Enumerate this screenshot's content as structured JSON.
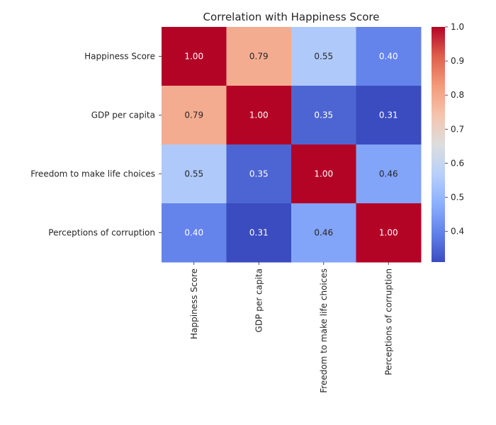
{
  "chart_data": {
    "type": "heatmap",
    "title": "Correlation with Happiness Score",
    "xlabel": "",
    "ylabel": "",
    "rows": [
      "Happiness Score",
      "GDP per capita",
      "Freedom to make life choices",
      "Perceptions of corruption"
    ],
    "columns": [
      "Happiness Score",
      "GDP per capita",
      "Freedom to make life choices",
      "Perceptions of corruption"
    ],
    "values": [
      [
        1.0,
        0.79,
        0.55,
        0.4
      ],
      [
        0.79,
        1.0,
        0.35,
        0.31
      ],
      [
        0.55,
        0.35,
        1.0,
        0.46
      ],
      [
        0.4,
        0.31,
        0.46,
        1.0
      ]
    ],
    "value_format": "0.00",
    "colormap": "coolwarm",
    "colorbar": {
      "range": [
        0.31,
        1.0
      ],
      "ticks": [
        "0.4",
        "0.5",
        "0.6",
        "0.7",
        "0.8",
        "0.9",
        "1.0"
      ],
      "placement": "right"
    },
    "grid": false,
    "legend": "colorbar-right"
  }
}
